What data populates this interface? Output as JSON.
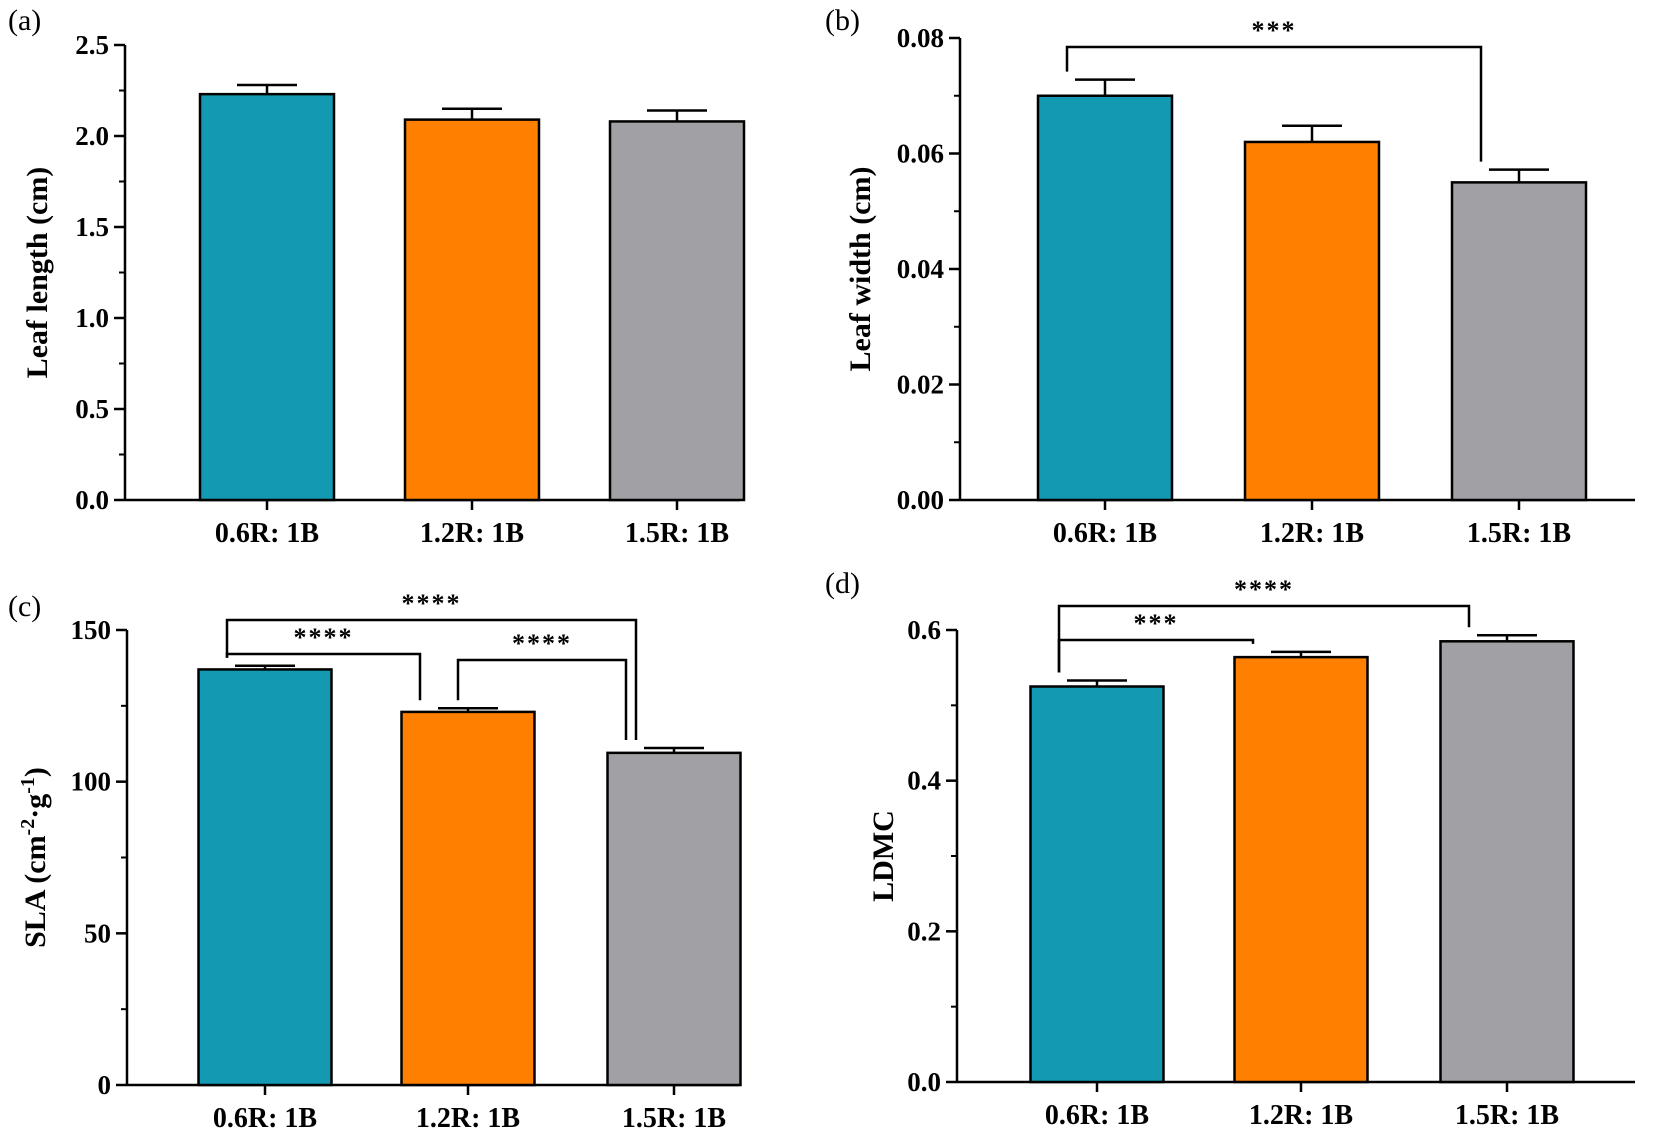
{
  "chart_data": [
    {
      "panel": "(a)",
      "type": "bar",
      "categories": [
        "0.6R: 1B",
        "1.2R: 1B",
        "1.5R: 1B"
      ],
      "values": [
        2.23,
        2.09,
        2.08
      ],
      "errors": [
        0.05,
        0.06,
        0.06
      ],
      "colors": [
        "#1499b3",
        "#ff8000",
        "#a1a1a5"
      ],
      "ylabel": "Leaf length (cm)",
      "ylim": [
        0,
        2.5
      ],
      "yticks": [
        "0.0",
        "0.5",
        "1.0",
        "1.5",
        "2.0",
        "2.5"
      ],
      "significance": []
    },
    {
      "panel": "(b)",
      "type": "bar",
      "categories": [
        "0.6R: 1B",
        "1.2R: 1B",
        "1.5R: 1B"
      ],
      "values": [
        0.07,
        0.062,
        0.055
      ],
      "errors": [
        0.0028,
        0.0028,
        0.0022
      ],
      "colors": [
        "#1499b3",
        "#ff8000",
        "#a1a1a5"
      ],
      "ylabel": "Leaf width (cm)",
      "ylim": [
        0,
        0.08
      ],
      "yticks": [
        "0.00",
        "0.02",
        "0.04",
        "0.06",
        "0.08"
      ],
      "significance": [
        {
          "from": 0,
          "to": 2,
          "label": "***"
        }
      ]
    },
    {
      "panel": "(c)",
      "type": "bar",
      "categories": [
        "0.6R: 1B",
        "1.2R: 1B",
        "1.5R: 1B"
      ],
      "values": [
        137,
        123,
        109.5
      ],
      "errors": [
        1.2,
        1.2,
        1.6
      ],
      "colors": [
        "#1499b3",
        "#ff8000",
        "#a1a1a5"
      ],
      "ylabel": "SLA (cm-2·g-1)",
      "ylim": [
        0,
        150
      ],
      "yticks": [
        "0",
        "50",
        "100",
        "150"
      ],
      "significance": [
        {
          "from": 0,
          "to": 2,
          "label": "****"
        },
        {
          "from": 0,
          "to": 1,
          "label": "****"
        },
        {
          "from": 1,
          "to": 2,
          "label": "****"
        }
      ]
    },
    {
      "panel": "(d)",
      "type": "bar",
      "categories": [
        "0.6R: 1B",
        "1.2R: 1B",
        "1.5R: 1B"
      ],
      "values": [
        0.525,
        0.564,
        0.585
      ],
      "errors": [
        0.008,
        0.007,
        0.008
      ],
      "colors": [
        "#1499b3",
        "#ff8000",
        "#a1a1a5"
      ],
      "ylabel": "LDMC",
      "ylim": [
        0,
        0.6
      ],
      "yticks": [
        "0.0",
        "0.2",
        "0.4",
        "0.6"
      ],
      "significance": [
        {
          "from": 0,
          "to": 2,
          "label": "****"
        },
        {
          "from": 0,
          "to": 1,
          "label": "***"
        }
      ]
    }
  ]
}
